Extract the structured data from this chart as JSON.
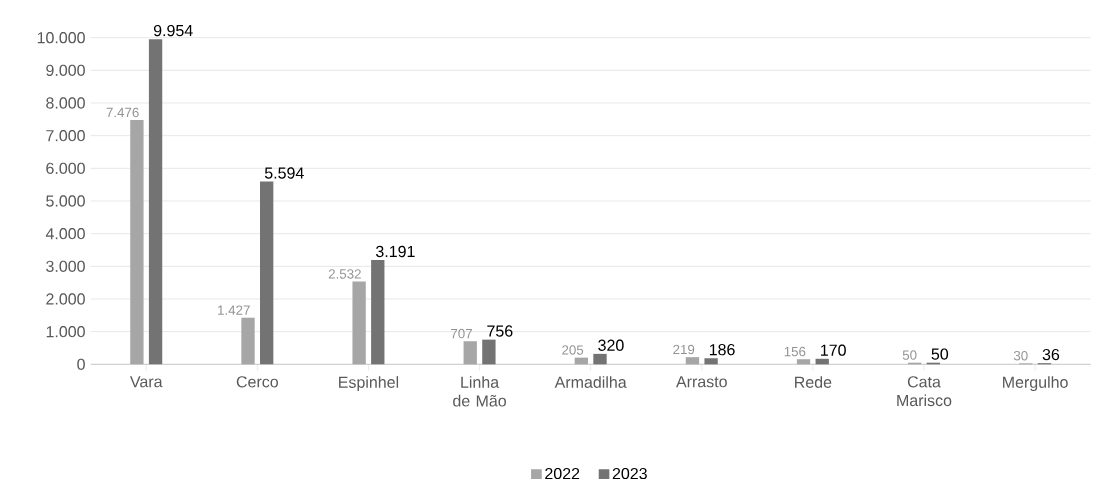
{
  "chart_data": {
    "type": "bar",
    "categories": [
      "Vara",
      "Cerco",
      "Espinhel",
      "Linha de Mão",
      "Armadilha",
      "Arrasto",
      "Rede",
      "Cata Marisco",
      "Mergulho"
    ],
    "series": [
      {
        "name": "2022",
        "color": "#a6a6a6",
        "values": [
          7476,
          1427,
          2532,
          707,
          205,
          219,
          156,
          50,
          30
        ],
        "value_labels": [
          "7.476",
          "1.427",
          "2.532",
          "707",
          "205",
          "219",
          "156",
          "50",
          "30"
        ]
      },
      {
        "name": "2023",
        "color": "#737373",
        "values": [
          9954,
          5594,
          3191,
          756,
          320,
          186,
          170,
          50,
          36
        ],
        "value_labels": [
          "9.954",
          "5.594",
          "3.191",
          "756",
          "320",
          "186",
          "170",
          "50",
          "36"
        ]
      }
    ],
    "ylim": [
      0,
      10000
    ],
    "yticks": [
      {
        "value": 0,
        "label": "0"
      },
      {
        "value": 1000,
        "label": "1.000"
      },
      {
        "value": 2000,
        "label": "2.000"
      },
      {
        "value": 3000,
        "label": "3.000"
      },
      {
        "value": 4000,
        "label": "4.000"
      },
      {
        "value": 5000,
        "label": "5.000"
      },
      {
        "value": 6000,
        "label": "6.000"
      },
      {
        "value": 7000,
        "label": "7.000"
      },
      {
        "value": 8000,
        "label": "8.000"
      },
      {
        "value": 9000,
        "label": "9.000"
      },
      {
        "value": 10000,
        "label": "10.000"
      }
    ],
    "grid": "y",
    "legend": "bottom"
  }
}
